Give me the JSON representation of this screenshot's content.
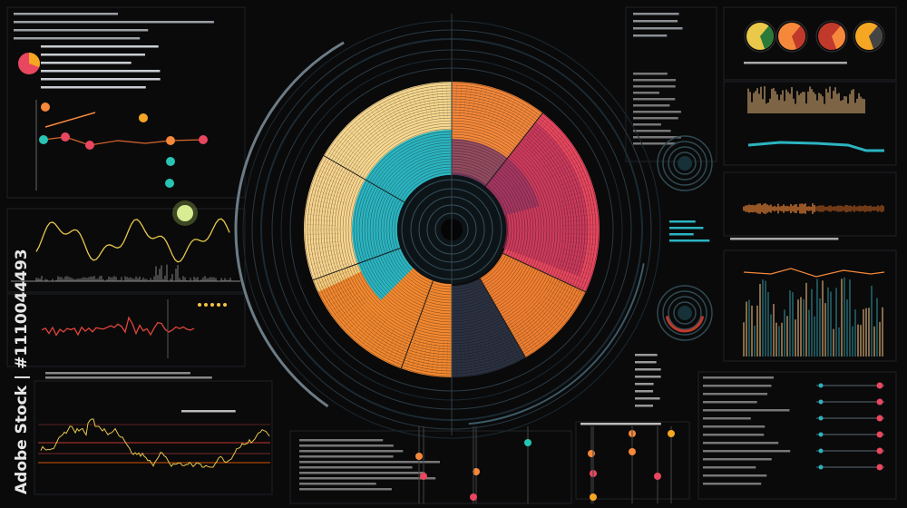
{
  "watermark": "Adobe Stock | #1110044493"
}
